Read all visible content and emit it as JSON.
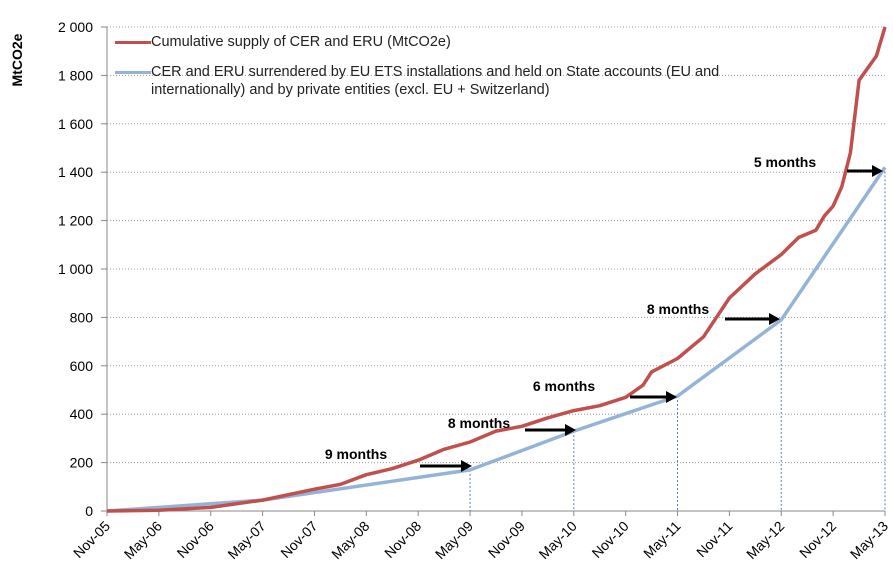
{
  "chart_data": {
    "type": "line",
    "y_label": "MtCO2e",
    "categories": [
      "Nov-05",
      "May-06",
      "Nov-06",
      "May-07",
      "Nov-07",
      "May-08",
      "Nov-08",
      "May-09",
      "Nov-09",
      "May-10",
      "Nov-10",
      "May-11",
      "Nov-11",
      "May-12",
      "Nov-12",
      "May-13"
    ],
    "series": [
      {
        "name": "Cumulative supply of CER and ERU (MtCO2e)",
        "color": "#c0504d",
        "x": [
          "Nov-05",
          "May-06",
          "Nov-06",
          "May-07",
          "Nov-07",
          "Feb-08",
          "May-08",
          "Aug-08",
          "Nov-08",
          "Feb-09",
          "May-09",
          "Aug-09",
          "Nov-09",
          "Feb-10",
          "May-10",
          "Aug-10",
          "Nov-10",
          "Jan-11",
          "Feb-11",
          "May-11",
          "Aug-11",
          "Nov-11",
          "Feb-12",
          "May-12",
          "Jul-12",
          "Sep-12",
          "Oct-12",
          "Nov-12",
          "Dec-12",
          "Jan-13",
          "Feb-13",
          "Apr-13",
          "May-13"
        ],
        "values": [
          0,
          3,
          15,
          45,
          90,
          110,
          150,
          175,
          210,
          255,
          285,
          330,
          350,
          385,
          415,
          435,
          470,
          520,
          575,
          630,
          720,
          880,
          980,
          1060,
          1130,
          1160,
          1220,
          1260,
          1340,
          1480,
          1780,
          1880,
          2000
        ]
      },
      {
        "name": "CER and ERU surrendered by EU ETS installations and held on State accounts (EU and internationally) and by private entities (excl. EU + Switzerland)",
        "color": "#95b3d7",
        "x": [
          "Nov-05",
          "May-07",
          "May-09",
          "May-10",
          "May-11",
          "May-12",
          "May-13"
        ],
        "values": [
          0,
          45,
          170,
          330,
          475,
          790,
          1420
        ]
      }
    ],
    "annotations": [
      "9 months",
      "8 months",
      "6 months",
      "8 months",
      "5 months"
    ],
    "ylim": [
      0,
      2000
    ],
    "yticks": [
      0,
      200,
      400,
      600,
      800,
      {
        "value": 1000,
        "label": "1 000"
      },
      {
        "value": 1200,
        "label": "1 200"
      },
      {
        "value": 1400,
        "label": "1 400"
      },
      {
        "value": 1600,
        "label": "1 600"
      },
      {
        "value": 1800,
        "label": "1 800"
      },
      {
        "value": 2000,
        "label": "2 000"
      }
    ],
    "grid": true
  }
}
